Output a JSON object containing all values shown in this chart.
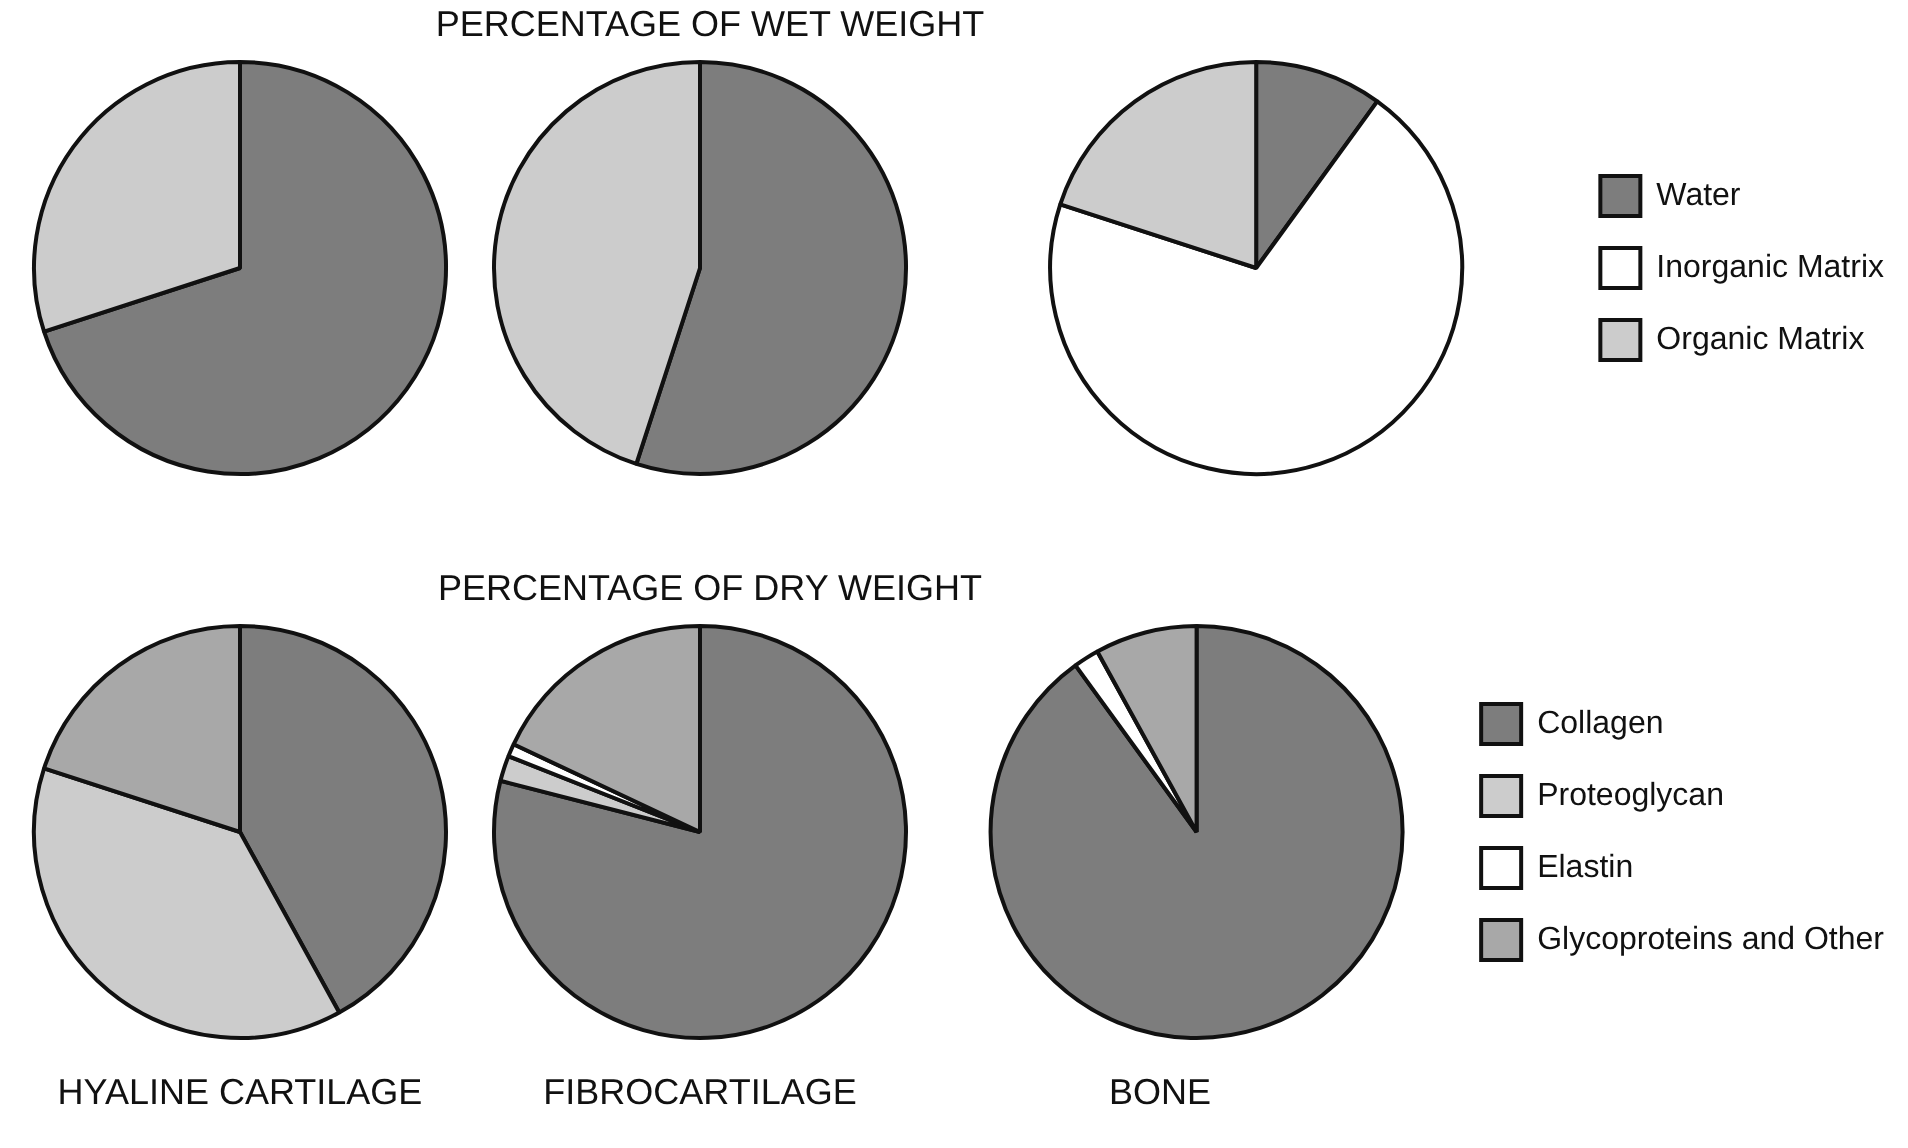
{
  "chart_data": [
    {
      "type": "pie",
      "title": "PERCENTAGE OF WET WEIGHT",
      "categories": [
        "Water",
        "Inorganic Matrix",
        "Organic Matrix"
      ],
      "colors": [
        "#7d7d7d",
        "#ffffff",
        "#cccccc"
      ],
      "legend": "right",
      "series": [
        {
          "values": [
            70,
            0,
            30
          ]
        },
        {
          "values": [
            55,
            0,
            45
          ]
        },
        {
          "values": [
            10,
            70,
            20
          ]
        }
      ]
    },
    {
      "type": "pie",
      "title": "PERCENTAGE OF DRY WEIGHT",
      "categories": [
        "Collagen",
        "Proteoglycan",
        "Elastin",
        "Glycoproteins and Other"
      ],
      "colors": [
        "#7d7d7d",
        "#cccccc",
        "#ffffff",
        "#a8a8a8"
      ],
      "legend": "right",
      "series": [
        {
          "name": "HYALINE CARTILAGE",
          "values": [
            42,
            38,
            0,
            20
          ]
        },
        {
          "name": "FIBROCARTILAGE",
          "values": [
            79,
            2,
            1,
            18
          ]
        },
        {
          "name": "BONE",
          "values": [
            90,
            0,
            2,
            8
          ]
        }
      ]
    }
  ]
}
